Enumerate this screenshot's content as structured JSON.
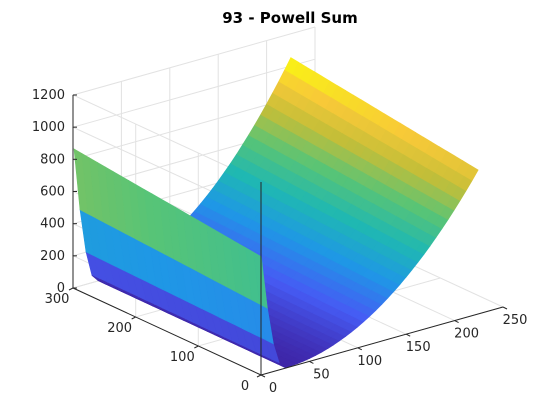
{
  "chart_data": {
    "type": "surface",
    "title": "93 - Powell Sum",
    "xlabel": "",
    "ylabel": "",
    "zlabel": "",
    "xlim": [
      0,
      250
    ],
    "ylim": [
      0,
      300
    ],
    "zlim": [
      0,
      1200
    ],
    "x_ticks": [
      "0",
      "50",
      "100",
      "150",
      "200",
      "250"
    ],
    "y_ticks": [
      "0",
      "100",
      "200",
      "300"
    ],
    "z_ticks": [
      "0",
      "200",
      "400",
      "600",
      "800",
      "1000",
      "1200"
    ],
    "grid": true,
    "colormap": "parula",
    "surface": {
      "x_range": [
        1,
        225
      ],
      "y_range": [
        1,
        300
      ],
      "x_min_location": 25,
      "z_at_x_min": 0,
      "z_at_x_max": 1050
    },
    "colors": {
      "low": "#3e26a8",
      "mid": "#1fb8b2",
      "high": "#f9fb0e"
    }
  }
}
